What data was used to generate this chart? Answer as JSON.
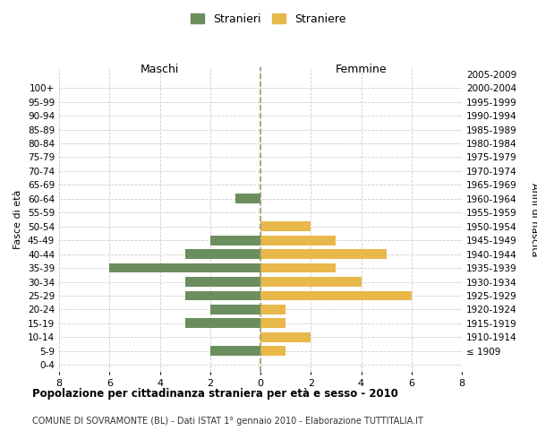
{
  "age_groups": [
    "100+",
    "95-99",
    "90-94",
    "85-89",
    "80-84",
    "75-79",
    "70-74",
    "65-69",
    "60-64",
    "55-59",
    "50-54",
    "45-49",
    "40-44",
    "35-39",
    "30-34",
    "25-29",
    "20-24",
    "15-19",
    "10-14",
    "5-9",
    "0-4"
  ],
  "birth_years": [
    "≤ 1909",
    "1910-1914",
    "1915-1919",
    "1920-1924",
    "1925-1929",
    "1930-1934",
    "1935-1939",
    "1940-1944",
    "1945-1949",
    "1950-1954",
    "1955-1959",
    "1960-1964",
    "1965-1969",
    "1970-1974",
    "1975-1979",
    "1980-1984",
    "1985-1989",
    "1990-1994",
    "1995-1999",
    "2000-2004",
    "2005-2009"
  ],
  "maschi": [
    0,
    0,
    0,
    0,
    0,
    0,
    0,
    0,
    1,
    0,
    0,
    2,
    3,
    6,
    3,
    3,
    2,
    3,
    0,
    2,
    0
  ],
  "femmine": [
    0,
    0,
    0,
    0,
    0,
    0,
    0,
    0,
    0,
    0,
    2,
    3,
    5,
    3,
    4,
    6,
    1,
    1,
    2,
    1,
    0
  ],
  "color_maschi": "#6b8e5e",
  "color_femmine": "#e8b84b",
  "title": "Popolazione per cittadinanza straniera per età e sesso - 2010",
  "subtitle": "COMUNE DI SOVRAMONTE (BL) - Dati ISTAT 1° gennaio 2010 - Elaborazione TUTTITALIA.IT",
  "xlabel_left": "Maschi",
  "xlabel_right": "Femmine",
  "ylabel_left": "Fasce di età",
  "ylabel_right": "Anni di nascita",
  "legend_maschi": "Stranieri",
  "legend_femmine": "Straniere",
  "xlim": 8,
  "background_color": "#ffffff",
  "grid_color": "#cccccc"
}
